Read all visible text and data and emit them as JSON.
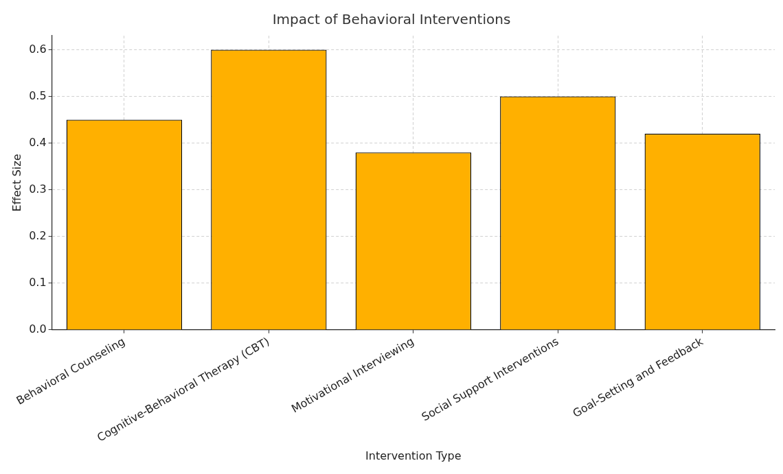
{
  "chart_data": {
    "type": "bar",
    "title": "Impact of Behavioral Interventions",
    "xlabel": "Intervention Type",
    "ylabel": "Effect Size",
    "categories": [
      "Behavioral Counseling",
      "Cognitive-Behavioral Therapy (CBT)",
      "Motivational Interviewing",
      "Social Support Interventions",
      "Goal-Setting and Feedback"
    ],
    "values": [
      0.45,
      0.6,
      0.38,
      0.5,
      0.42
    ],
    "color": "#ffb000",
    "ylim": [
      0,
      0.63
    ],
    "yticks": [
      {
        "value": 0,
        "label": "0.0"
      },
      {
        "value": 0.1,
        "label": "0.1"
      },
      {
        "value": 0.2,
        "label": "0.2"
      },
      {
        "value": 0.3,
        "label": "0.3"
      },
      {
        "value": 0.4,
        "label": "0.4"
      },
      {
        "value": 0.5,
        "label": "0.5"
      },
      {
        "value": 0.6,
        "label": "0.6"
      }
    ],
    "grid": true
  }
}
